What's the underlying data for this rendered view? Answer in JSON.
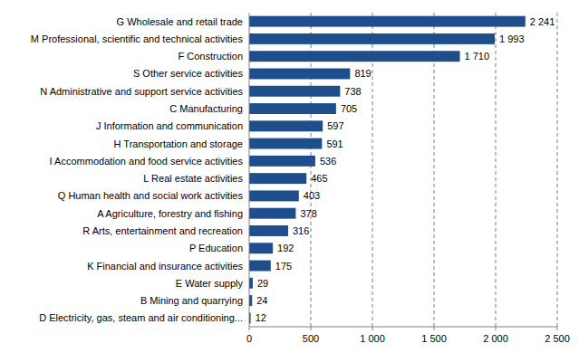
{
  "chart_data": {
    "type": "bar",
    "orientation": "horizontal",
    "categories": [
      "G Wholesale and retail trade",
      "M Professional, scientific and technical activities",
      "F Construction",
      "S Other service activities",
      "N Administrative and support service activities",
      "C Manufacturing",
      "J Information and communication",
      "H Transportation and storage",
      "I Accommodation and food service activities",
      "L Real estate activities",
      "Q Human health and social work activities",
      "A Agriculture, forestry and fishing",
      "R Arts, entertainment and recreation",
      "P Education",
      "K Financial and insurance activities",
      "E Water supply",
      "B Mining and quarrying",
      "D Electricity, gas, steam and air conditioning..."
    ],
    "values": [
      2241,
      1993,
      1710,
      819,
      738,
      705,
      597,
      591,
      536,
      465,
      403,
      378,
      316,
      192,
      175,
      29,
      24,
      12
    ],
    "value_labels": [
      "2 241",
      "1 993",
      "1 710",
      "819",
      "738",
      "705",
      "597",
      "591",
      "536",
      "465",
      "403",
      "378",
      "316",
      "192",
      "175",
      "29",
      "24",
      "12"
    ],
    "color": "#1f4e8c",
    "xlim": [
      0,
      2500
    ],
    "xticks": [
      0,
      500,
      {
        "value": 1000,
        "label": "1 000"
      },
      {
        "value": 1500,
        "label": "1 500"
      },
      {
        "value": 2000,
        "label": "2 000"
      },
      {
        "value": 2500,
        "label": "2 500"
      }
    ],
    "grid": true,
    "data_labels": true
  }
}
